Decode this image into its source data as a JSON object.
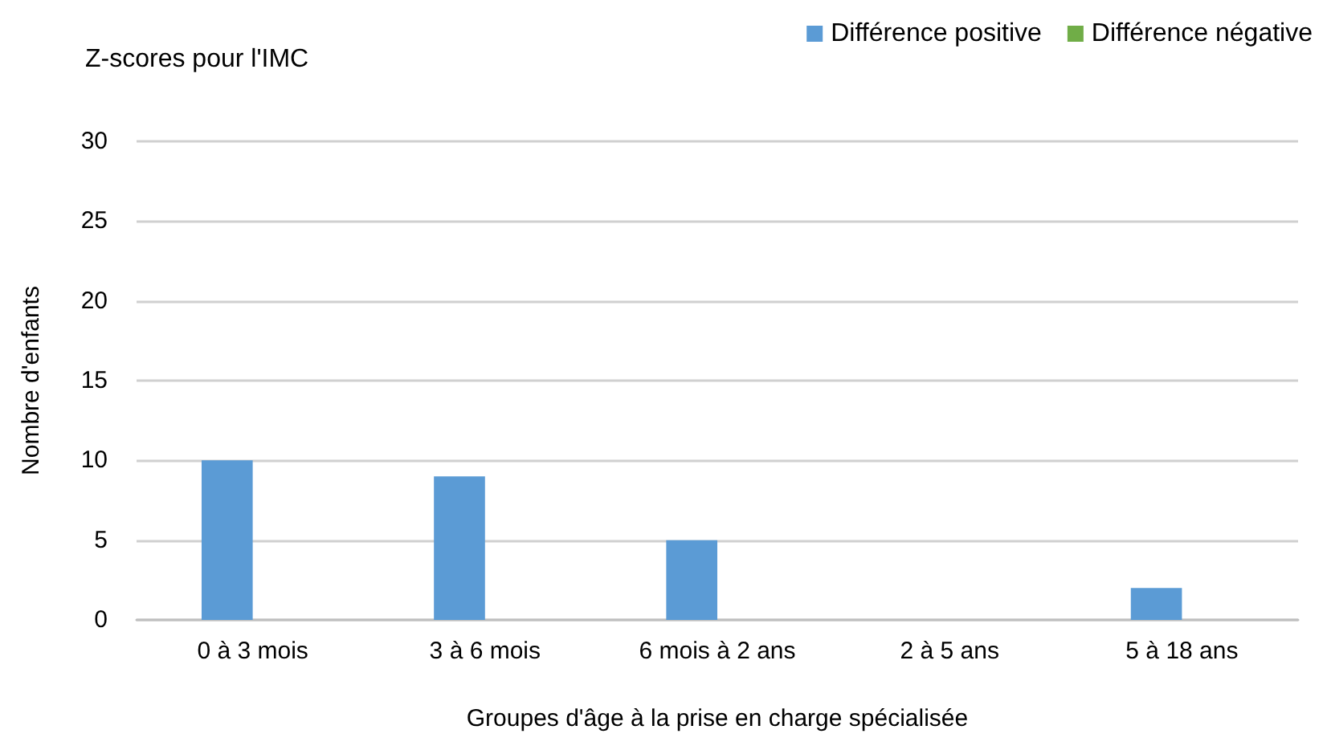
{
  "chart_data": {
    "type": "bar",
    "title": "Z-scores pour l'IMC",
    "xlabel": "Groupes d'âge à la prise en charge spécialisée",
    "ylabel": "Nombre d'enfants",
    "categories": [
      "0 à 3 mois",
      "3 à 6 mois",
      "6 mois à 2 ans",
      "2 à 5 ans",
      "5 à 18 ans"
    ],
    "series": [
      {
        "name": "Différence positive",
        "color": "#5b9bd5",
        "values": [
          10,
          9,
          5,
          0,
          2
        ]
      },
      {
        "name": "Différence négative",
        "color": "#70ad47",
        "values": [
          0,
          0,
          0,
          0,
          0
        ]
      }
    ],
    "ylim": [
      0,
      30
    ],
    "yticks": [
      0,
      5,
      10,
      15,
      20,
      25,
      30
    ],
    "grid": "y",
    "legend": "top right"
  }
}
